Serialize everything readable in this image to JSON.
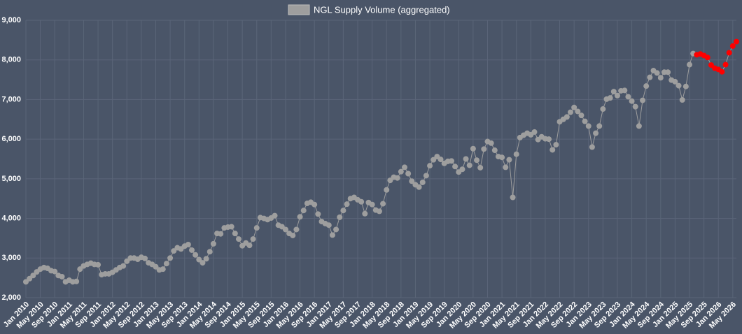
{
  "chart_data": {
    "type": "line",
    "legend_position": "top",
    "grid": true,
    "categories": [
      "Jan 2010",
      null,
      null,
      null,
      "May 2010",
      null,
      null,
      null,
      "Sep 2010",
      null,
      null,
      null,
      "Jan 2011",
      null,
      null,
      null,
      "May 2011",
      null,
      null,
      null,
      "Sep 2011",
      null,
      null,
      null,
      "Jan 2012",
      null,
      null,
      null,
      "May 2012",
      null,
      null,
      null,
      "Sep 2012",
      null,
      null,
      null,
      "Jan 2013",
      null,
      null,
      null,
      "May 2013",
      null,
      null,
      null,
      "Sep 2013",
      null,
      null,
      null,
      "Jan 2014",
      null,
      null,
      null,
      "May 2014",
      null,
      null,
      null,
      "Sep 2014",
      null,
      null,
      null,
      "Jan 2015",
      null,
      null,
      null,
      "May 2015",
      null,
      null,
      null,
      "Sep 2015",
      null,
      null,
      null,
      "Jan 2016",
      null,
      null,
      null,
      "May 2016",
      null,
      null,
      null,
      "Sep 2016",
      null,
      null,
      null,
      "Jan 2017",
      null,
      null,
      null,
      "May 2017",
      null,
      null,
      null,
      "Sep 2017",
      null,
      null,
      null,
      "Jan 2018",
      null,
      null,
      null,
      "May 2018",
      null,
      null,
      null,
      "Sep 2018",
      null,
      null,
      null,
      "Jan 2019",
      null,
      null,
      null,
      "May 2019",
      null,
      null,
      null,
      "Sep 2019",
      null,
      null,
      null,
      "Jan 2020",
      null,
      null,
      null,
      "May 2020",
      null,
      null,
      null,
      "Sep 2020",
      null,
      null,
      null,
      "Jan 2021",
      null,
      null,
      null,
      "May 2021",
      null,
      null,
      null,
      "Sep 2021",
      null,
      null,
      null,
      "Jan 2022",
      null,
      null,
      null,
      "May 2022",
      null,
      null,
      null,
      "Sep 2022",
      null,
      null,
      null,
      "Jan 2023",
      null,
      null,
      null,
      "May 2023",
      null,
      null,
      null,
      "Sep 2023",
      null,
      null,
      null,
      "Jan 2024",
      null,
      null,
      null,
      "May 2024",
      null,
      null,
      null,
      "Sep 2024",
      null,
      null,
      null,
      "Jan 2025",
      null,
      null,
      null,
      "May 2025",
      null,
      null,
      null,
      "Sep 2025",
      null,
      null,
      null,
      "Jan 2026",
      null,
      null,
      null,
      "May 2026",
      null
    ],
    "series": [
      {
        "name": "NGL Supply Volume (aggregated)",
        "color": "#9e9e9e",
        "values": [
          2400,
          2480,
          2560,
          2650,
          2720,
          2760,
          2740,
          2680,
          2660,
          2560,
          2530,
          2400,
          2440,
          2400,
          2410,
          2720,
          2800,
          2840,
          2870,
          2840,
          2830,
          2580,
          2600,
          2600,
          2640,
          2700,
          2760,
          2800,
          2920,
          3000,
          3000,
          2970,
          3020,
          2990,
          2880,
          2840,
          2780,
          2700,
          2720,
          2860,
          3000,
          3180,
          3260,
          3230,
          3300,
          3340,
          3200,
          3080,
          2960,
          2880,
          2980,
          3160,
          3360,
          3620,
          3610,
          3760,
          3780,
          3790,
          3620,
          3480,
          3310,
          3380,
          3320,
          3480,
          3760,
          4020,
          4000,
          3970,
          4010,
          4070,
          3830,
          3790,
          3720,
          3620,
          3570,
          3720,
          4040,
          4200,
          4380,
          4410,
          4350,
          4110,
          3920,
          3870,
          3830,
          3580,
          3720,
          4030,
          4200,
          4360,
          4500,
          4530,
          4470,
          4420,
          4120,
          4400,
          4350,
          4210,
          4180,
          4370,
          4720,
          4960,
          5040,
          5020,
          5180,
          5290,
          5130,
          4940,
          4850,
          4790,
          4910,
          5080,
          5330,
          5480,
          5560,
          5490,
          5390,
          5440,
          5450,
          5310,
          5170,
          5240,
          5500,
          5340,
          5760,
          5470,
          5280,
          5750,
          5940,
          5900,
          5720,
          5560,
          5540,
          5290,
          5480,
          4530,
          5620,
          6040,
          6100,
          6150,
          6110,
          6180,
          5990,
          6060,
          6010,
          6000,
          5730,
          5860,
          6440,
          6500,
          6560,
          6680,
          6800,
          6700,
          6600,
          6450,
          6330,
          5800,
          6150,
          6330,
          6760,
          7010,
          7040,
          7200,
          7100,
          7220,
          7230,
          7070,
          6960,
          6820,
          6330,
          6980,
          7340,
          7560,
          7730,
          7670,
          7550,
          7690,
          7690,
          7490,
          7450,
          7350,
          6990,
          7330,
          7880,
          8160,
          null,
          null,
          null,
          null,
          null,
          null,
          null,
          null,
          null,
          null,
          null,
          null
        ]
      },
      {
        "color": "#ff0000",
        "values": [
          null,
          null,
          null,
          null,
          null,
          null,
          null,
          null,
          null,
          null,
          null,
          null,
          null,
          null,
          null,
          null,
          null,
          null,
          null,
          null,
          null,
          null,
          null,
          null,
          null,
          null,
          null,
          null,
          null,
          null,
          null,
          null,
          null,
          null,
          null,
          null,
          null,
          null,
          null,
          null,
          null,
          null,
          null,
          null,
          null,
          null,
          null,
          null,
          null,
          null,
          null,
          null,
          null,
          null,
          null,
          null,
          null,
          null,
          null,
          null,
          null,
          null,
          null,
          null,
          null,
          null,
          null,
          null,
          null,
          null,
          null,
          null,
          null,
          null,
          null,
          null,
          null,
          null,
          null,
          null,
          null,
          null,
          null,
          null,
          null,
          null,
          null,
          null,
          null,
          null,
          null,
          null,
          null,
          null,
          null,
          null,
          null,
          null,
          null,
          null,
          null,
          null,
          null,
          null,
          null,
          null,
          null,
          null,
          null,
          null,
          null,
          null,
          null,
          null,
          null,
          null,
          null,
          null,
          null,
          null,
          null,
          null,
          null,
          null,
          null,
          null,
          null,
          null,
          null,
          null,
          null,
          null,
          null,
          null,
          null,
          null,
          null,
          null,
          null,
          null,
          null,
          null,
          null,
          null,
          null,
          null,
          null,
          null,
          null,
          null,
          null,
          null,
          null,
          null,
          null,
          null,
          null,
          null,
          null,
          null,
          null,
          null,
          null,
          null,
          null,
          null,
          null,
          null,
          null,
          null,
          null,
          null,
          null,
          null,
          null,
          null,
          null,
          null,
          null,
          null,
          null,
          null,
          null,
          null,
          null,
          null,
          8130,
          8150,
          8110,
          8060,
          7870,
          7790,
          7760,
          7700,
          7880,
          8180,
          8350,
          8460
        ]
      }
    ],
    "ylim": [
      2000,
      9000
    ],
    "yticks": [
      {
        "value": 2000,
        "label": "2,000"
      },
      {
        "value": 3000,
        "label": "3,000"
      },
      {
        "value": 4000,
        "label": "4,000"
      },
      {
        "value": 5000,
        "label": "5,000"
      },
      {
        "value": 6000,
        "label": "6,000"
      },
      {
        "value": 7000,
        "label": "7,000"
      },
      {
        "value": 8000,
        "label": "8,000"
      },
      {
        "value": 9000,
        "label": "9,000"
      }
    ]
  }
}
